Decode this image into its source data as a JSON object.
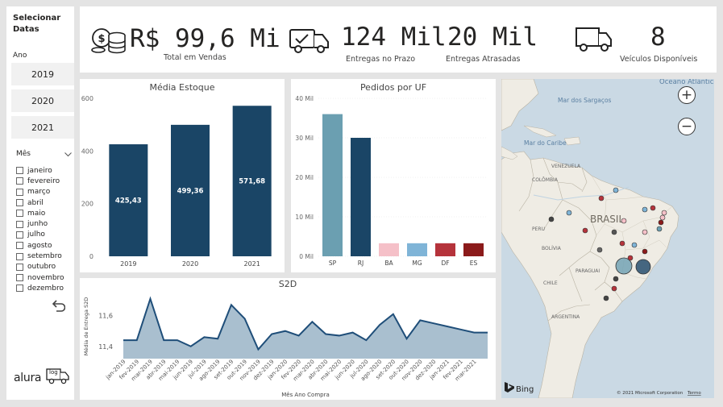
{
  "sidebar": {
    "title": "Selecionar Datas",
    "year_label": "Ano",
    "years": [
      "2019",
      "2020",
      "2021"
    ],
    "month_label": "Mês",
    "months": [
      "janeiro",
      "fevereiro",
      "março",
      "abril",
      "maio",
      "junho",
      "julho",
      "agosto",
      "setembro",
      "outubro",
      "novembro",
      "dezembro"
    ],
    "brand": "alura",
    "brand_badge": "log"
  },
  "kpis": {
    "sales_value": "R$ 99,6 Mi",
    "sales_label": "Total em Vendas",
    "ontime_value": "124 Mil",
    "ontime_label": "Entregas no Prazo",
    "late_value": "20 Mil",
    "late_label": "Entregas Atrasadas",
    "vehicles_value": "8",
    "vehicles_label": "Veículos Disponíveis"
  },
  "map": {
    "labels": {
      "ocean": "Oceano Atlântico",
      "sargasso": "Mar dos Sargaços",
      "caribe": "Mar do Caribe",
      "colombia": "COLÔMBIA",
      "venezuela": "VENEZUELA",
      "peru": "PERU",
      "brasil": "BRASIL",
      "bolivia": "BOLÍVIA",
      "paraguai": "PARAGUAI",
      "chile": "CHILE",
      "argentina": "ARGENTINA"
    },
    "bing": "Bing",
    "copyright": "© 2021 Microsoft Corporation",
    "terms": "Termo",
    "zoom_in": "+",
    "zoom_out": "−"
  },
  "chart_data": [
    {
      "type": "bar",
      "title": "Média Estoque",
      "categories": [
        "2019",
        "2020",
        "2021"
      ],
      "values": [
        425.43,
        499.36,
        571.68
      ],
      "data_labels": [
        "425,43",
        "499,36",
        "571,68"
      ],
      "ylim": [
        0,
        600
      ],
      "yticks": [
        "0",
        "200",
        "400",
        "600"
      ],
      "color": "#1a4566"
    },
    {
      "type": "bar",
      "title": "Pedidos por UF",
      "categories": [
        "SP",
        "RJ",
        "BA",
        "MG",
        "DF",
        "ES"
      ],
      "values": [
        36000,
        30000,
        3300,
        3300,
        3300,
        3300
      ],
      "colors": [
        "#6b9fb1",
        "#1a4566",
        "#f5c0c8",
        "#7fb4d7",
        "#b5333b",
        "#8b1a1a"
      ],
      "ylim": [
        0,
        40000
      ],
      "yticks": [
        "0 Mil",
        "10 Mil",
        "20 Mil",
        "30 Mil",
        "40 Mil"
      ]
    },
    {
      "type": "area",
      "title": "S2D",
      "xlabel": "Mês  Ano Compra",
      "ylabel": "Média de Entrega S2D",
      "categories": [
        "jan-2019",
        "fev-2019",
        "mar-2019",
        "abr-2019",
        "mai-2019",
        "jun-2019",
        "jul-2019",
        "ago-2019",
        "set-2019",
        "out-2019",
        "nov-2019",
        "dez-2019",
        "jan-2020",
        "fev-2020",
        "mar-2020",
        "abr-2020",
        "mai-2020",
        "jun-2020",
        "jul-2020",
        "ago-2020",
        "set-2020",
        "out-2020",
        "nov-2020",
        "dez-2020",
        "jan-2021",
        "fev-2021",
        "mar-2021",
        "abr-2021"
      ],
      "tick_labels": [
        "jan-2019",
        "fev-2019",
        "mar-2019",
        "abr-2019",
        "mai-2019",
        "jun-2019",
        "jul-2019",
        "ago-2019",
        "set-2019",
        "out-2019",
        "nov-2019",
        "dez-2019",
        "jan-2020",
        "fev-2020",
        "mar-2020",
        "abr-2020",
        "mai-2020",
        "jun-2020",
        "jul-2020",
        "ago-2020",
        "set-2020",
        "out-2020",
        "nov-2020",
        "dez-2020",
        "jan-2021",
        "fev-2021",
        "mar-2021"
      ],
      "values": [
        11.44,
        11.44,
        11.71,
        11.44,
        11.44,
        11.4,
        11.46,
        11.45,
        11.67,
        11.58,
        11.38,
        11.48,
        11.5,
        11.47,
        11.56,
        11.48,
        11.47,
        11.49,
        11.44,
        11.54,
        11.61,
        11.45,
        11.57,
        11.55,
        11.53,
        11.51,
        11.49,
        11.49
      ],
      "ylim": [
        11.32,
        11.74
      ],
      "yticks": [
        11.4,
        11.6
      ],
      "ytick_labels": [
        "11,4",
        "11,6"
      ],
      "color": "#1f4e79",
      "fill": "#a9bfcf"
    }
  ]
}
